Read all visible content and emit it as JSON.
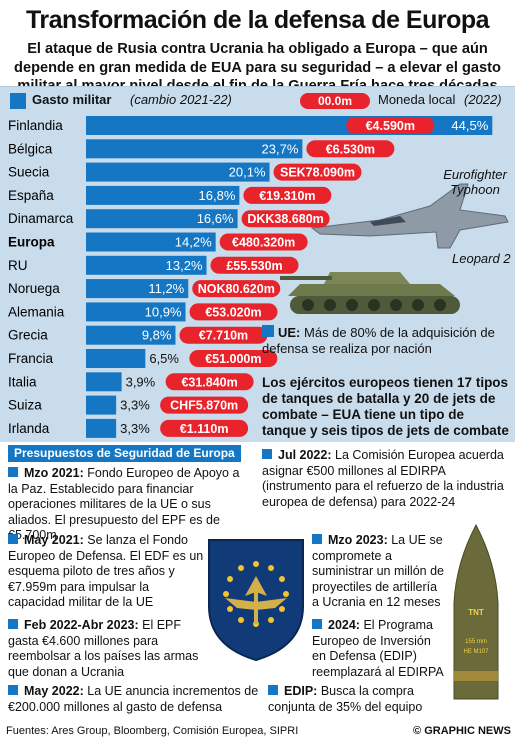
{
  "header": {
    "title": "Transformación de la defensa de Europa",
    "subtitle": "El ataque de Rusia contra Ucrania ha obligado a Europa – que aún depende en gran medida de EUA para su seguridad – a elevar el gasto militar al mayor nivel desde el fin de la Guerra Fría hace tres décadas"
  },
  "legend": {
    "label": "Gasto militar",
    "note": "(cambio 2021-22)",
    "pill": "00.0m",
    "currency": "Moneda local",
    "year": "(2022)"
  },
  "colors": {
    "bar": "#1577c4",
    "pill": "#e8232c",
    "panel": "#c9dcec",
    "dark": "#103b78"
  },
  "chart_data": {
    "type": "bar",
    "orientation": "horizontal",
    "categories": [
      "Finlandia",
      "Bélgica",
      "Suecia",
      "España",
      "Dinamarca",
      "Europa",
      "RU",
      "Noruega",
      "Alemania",
      "Grecia",
      "Francia",
      "Italia",
      "Suiza",
      "Irlanda"
    ],
    "values": [
      44.5,
      23.7,
      20.1,
      16.8,
      16.6,
      14.2,
      13.2,
      11.2,
      10.9,
      9.8,
      6.5,
      3.9,
      3.3,
      3.3
    ],
    "value_labels": [
      "44,5%",
      "23,7%",
      "20,1%",
      "16,8%",
      "16,6%",
      "14,2%",
      "13,2%",
      "11,2%",
      "10,9%",
      "9,8%",
      "6,5%",
      "3,9%",
      "3,3%",
      "3,3%"
    ],
    "local_currency": [
      "€4.590m",
      "€6.530m",
      "SEK78.090m",
      "€19.310m",
      "DKK38.680m",
      "€480.320m",
      "£55.530m",
      "NOK80.620m",
      "€53.020m",
      "€7.710m",
      "€51.000m",
      "€31.840m",
      "CHF5.870m",
      "€1.110m"
    ],
    "highlight": [
      "Europa"
    ]
  },
  "aircraft_label": "Eurofighter Typhoon",
  "tank_label": "Leopard 2",
  "eu_note": {
    "prefix": "UE:",
    "text": "Más de 80% de la adquisición de defensa se realiza por nación"
  },
  "forces_note": "Los ejércitos europeos tienen 17 tipos de tanques de batalla y 20 de jets de combate – EUA tiene un tipo de tanque y seis tipos de jets de combate",
  "notes_title": "Presupuestos de Seguridad de Europa",
  "notes": {
    "n1": {
      "date": "Mzo 2021:",
      "body": "Fondo Europeo de Apoyo a la Paz. Establecido para financiar operaciones militares de la UE o sus aliados. El presupuesto del EPF es de €5.700m"
    },
    "n2": {
      "date": "Jul 2022:",
      "body": "La Comisión Europea acuerda asignar €500 millones al EDIRPA (instrumento para el refuerzo de la industria europea de defensa) para 2022-24"
    },
    "n3": {
      "date": "May 2021:",
      "body": "Se lanza el Fondo Europeo de Defensa. El EDF es un esquema piloto de tres años y €7.959m para impulsar la capacidad militar de la UE"
    },
    "n4": {
      "date": "Mzo 2023:",
      "body": "La UE se compromete a suministrar un millón de proyectiles de artillería a Ucrania en 12 meses"
    },
    "n5": {
      "date": "Feb 2022-Abr 2023:",
      "body": "El EPF gasta €4.600 millones para reembolsar a los países las armas que donan a Ucrania"
    },
    "n6": {
      "date": "2024:",
      "body": "El Programa Europeo de Inversión en Defensa (EDIP) reemplazará al EDIRPA"
    },
    "n7": {
      "date": "May 2022:",
      "body": "La UE anuncia incrementos de €200.000 millones al gasto de defensa"
    },
    "n8": {
      "date": "EDIP:",
      "body": "Busca la compra conjunta de 35% del equipo"
    }
  },
  "shell_text": {
    "t1": "TNT",
    "t2": "155 mm",
    "t3": "HE M107"
  },
  "footer": {
    "source": "Fuentes: Ares Group, Bloomberg, Comisión Europea, SIPRI",
    "brand": "© GRAPHIC NEWS"
  }
}
